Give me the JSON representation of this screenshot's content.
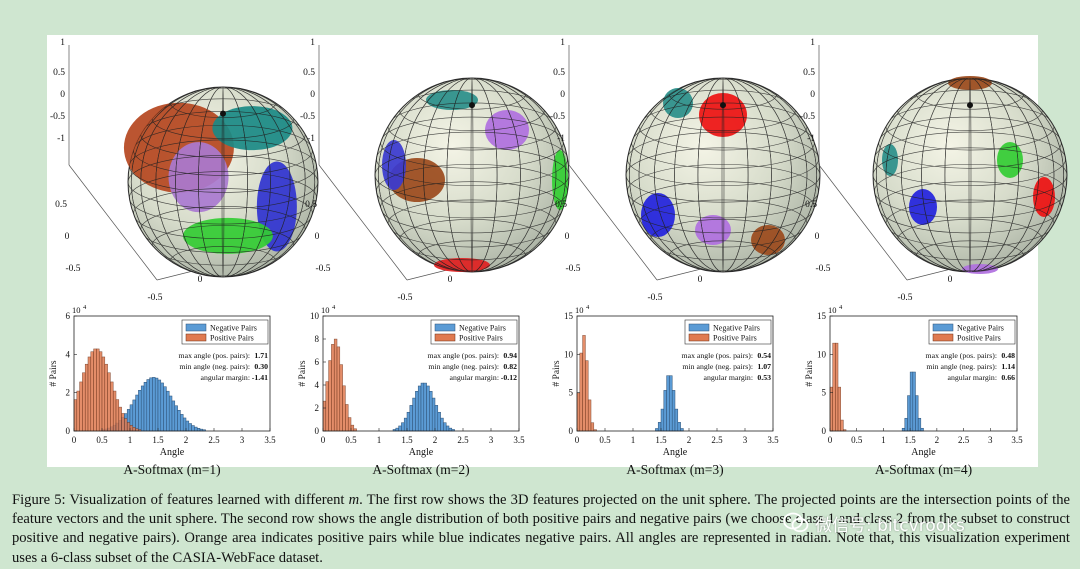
{
  "figure": {
    "spheres": [
      {
        "id": "m1",
        "axis_ticks_y": [
          "1",
          "0.5",
          "0",
          "-0.5",
          "-1"
        ],
        "axis_ticks_x": [
          "0.5",
          "0",
          "-0.5"
        ],
        "axis_ticks_bx": [
          "-0.5",
          "0",
          "0.5"
        ]
      },
      {
        "id": "m2",
        "axis_ticks_y": [
          "1",
          "0.5",
          "0",
          "-0.5",
          "-1"
        ],
        "axis_ticks_x": [
          "0.5",
          "0",
          "-0.5"
        ],
        "axis_ticks_bx": [
          "-0.5",
          "0",
          "0.5"
        ]
      },
      {
        "id": "m3",
        "axis_ticks_y": [
          "1",
          "0.5",
          "0",
          "-0.5",
          "-1"
        ],
        "axis_ticks_x": [
          "0.5",
          "0",
          "-0.5"
        ],
        "axis_ticks_bx": [
          "-0.5",
          "0",
          "0.5"
        ]
      },
      {
        "id": "m4",
        "axis_ticks_y": [
          "1",
          "0.5",
          "0",
          "-0.5",
          "-1"
        ],
        "axis_ticks_x": [
          "0.5",
          "0",
          "-0.5"
        ],
        "axis_ticks_bx": [
          "-0.5",
          "0",
          "0.5"
        ]
      }
    ],
    "colors": {
      "negative": "#5b9bd5",
      "positive": "#e07a50",
      "neg_edge": "#2c4f73",
      "pos_edge": "#6b2e14"
    }
  },
  "chart_data": [
    {
      "type": "bar",
      "title": "A-Softmax (m=1)",
      "xlabel": "Angle",
      "ylabel": "# Pairs",
      "y_exponent": "10",
      "y_exponent_power": "4",
      "xlim": [
        0,
        3.5
      ],
      "ylim": [
        0,
        6
      ],
      "xticks": [
        "0",
        "0.5",
        "1",
        "1.5",
        "2",
        "2.5",
        "3",
        "3.5"
      ],
      "yticks": [
        "0",
        "2",
        "4",
        "6"
      ],
      "legend": [
        "Negative Pairs",
        "Positive Pairs"
      ],
      "legend_position": "top-right",
      "stats": [
        {
          "label": "max angle (pos. pairs):",
          "value": "1.71"
        },
        {
          "label": "min angle (neg. pairs):",
          "value": "0.30"
        },
        {
          "label": "angular margin:",
          "value": "-1.41"
        }
      ],
      "series": [
        {
          "name": "Negative Pairs",
          "mean": 1.42,
          "sd": 0.33,
          "peak": 2.8
        },
        {
          "name": "Positive Pairs",
          "mean": 0.4,
          "sd": 0.27,
          "peak": 4.3
        }
      ]
    },
    {
      "type": "bar",
      "title": "A-Softmax (m=2)",
      "xlabel": "Angle",
      "ylabel": "# Pairs",
      "y_exponent": "10",
      "y_exponent_power": "4",
      "xlim": [
        0,
        3.5
      ],
      "ylim": [
        0,
        10
      ],
      "xticks": [
        "0",
        "0.5",
        "1",
        "1.5",
        "2",
        "2.5",
        "3",
        "3.5"
      ],
      "yticks": [
        "0",
        "2",
        "4",
        "6",
        "8",
        "10"
      ],
      "legend": [
        "Negative Pairs",
        "Positive Pairs"
      ],
      "legend_position": "top-right",
      "stats": [
        {
          "label": "max angle (pos. pairs):",
          "value": "0.94"
        },
        {
          "label": "min angle (neg. pairs):",
          "value": "0.82"
        },
        {
          "label": "angular margin:",
          "value": "-0.12"
        }
      ],
      "series": [
        {
          "name": "Negative Pairs",
          "mean": 1.8,
          "sd": 0.2,
          "peak": 4.2
        },
        {
          "name": "Positive Pairs",
          "mean": 0.22,
          "sd": 0.13,
          "peak": 8.0
        }
      ]
    },
    {
      "type": "bar",
      "title": "A-Softmax (m=3)",
      "xlabel": "Angle",
      "ylabel": "# Pairs",
      "y_exponent": "10",
      "y_exponent_power": "4",
      "xlim": [
        0,
        3.5
      ],
      "ylim": [
        0,
        15
      ],
      "xticks": [
        "0",
        "0.5",
        "1",
        "1.5",
        "2",
        "2.5",
        "3",
        "3.5"
      ],
      "yticks": [
        "0",
        "5",
        "10",
        "15"
      ],
      "legend": [
        "Negative Pairs",
        "Positive Pairs"
      ],
      "legend_position": "top-right",
      "stats": [
        {
          "label": "max angle (pos. pairs):",
          "value": "0.54"
        },
        {
          "label": "min angle (neg. pairs):",
          "value": "1.07"
        },
        {
          "label": "angular margin:",
          "value": "0.53"
        }
      ],
      "series": [
        {
          "name": "Negative Pairs",
          "mean": 1.65,
          "sd": 0.09,
          "peak": 7.5
        },
        {
          "name": "Positive Pairs",
          "mean": 0.12,
          "sd": 0.07,
          "peak": 12.5
        }
      ]
    },
    {
      "type": "bar",
      "title": "A-Softmax (m=4)",
      "xlabel": "Angle",
      "ylabel": "# Pairs",
      "y_exponent": "10",
      "y_exponent_power": "4",
      "xlim": [
        0,
        3.5
      ],
      "ylim": [
        0,
        15
      ],
      "xticks": [
        "0",
        "0.5",
        "1",
        "1.5",
        "2",
        "2.5",
        "3",
        "3.5"
      ],
      "yticks": [
        "0",
        "5",
        "10",
        "15"
      ],
      "legend": [
        "Negative Pairs",
        "Positive Pairs"
      ],
      "legend_position": "top-right",
      "stats": [
        {
          "label": "max angle (pos. pairs):",
          "value": "0.48"
        },
        {
          "label": "min angle (neg. pairs):",
          "value": "1.14"
        },
        {
          "label": "angular margin:",
          "value": "0.66"
        }
      ],
      "series": [
        {
          "name": "Negative Pairs",
          "mean": 1.55,
          "sd": 0.07,
          "peak": 8.2
        },
        {
          "name": "Positive Pairs",
          "mean": 0.1,
          "sd": 0.06,
          "peak": 12.5
        }
      ]
    }
  ],
  "caption": {
    "label": "Figure 5:",
    "part1": " Visualization of features learned with different ",
    "mvar": "m",
    "part2": ". The first row shows the 3D features projected on the unit sphere. The projected points are the intersection points of the feature vectors and the unit sphere. The second row shows the angle distribution of both positive pairs and negative pairs (we choose class 1 and class 2 from the subset to construct positive and negative pairs). Orange area indicates positive pairs while blue indicates negative pairs. All angles are represented in radian. Note that, this visualization experiment uses a 6-class subset of the CASIA-WebFace dataset."
  },
  "watermark": {
    "text": "微信号: bitcvrooks"
  }
}
